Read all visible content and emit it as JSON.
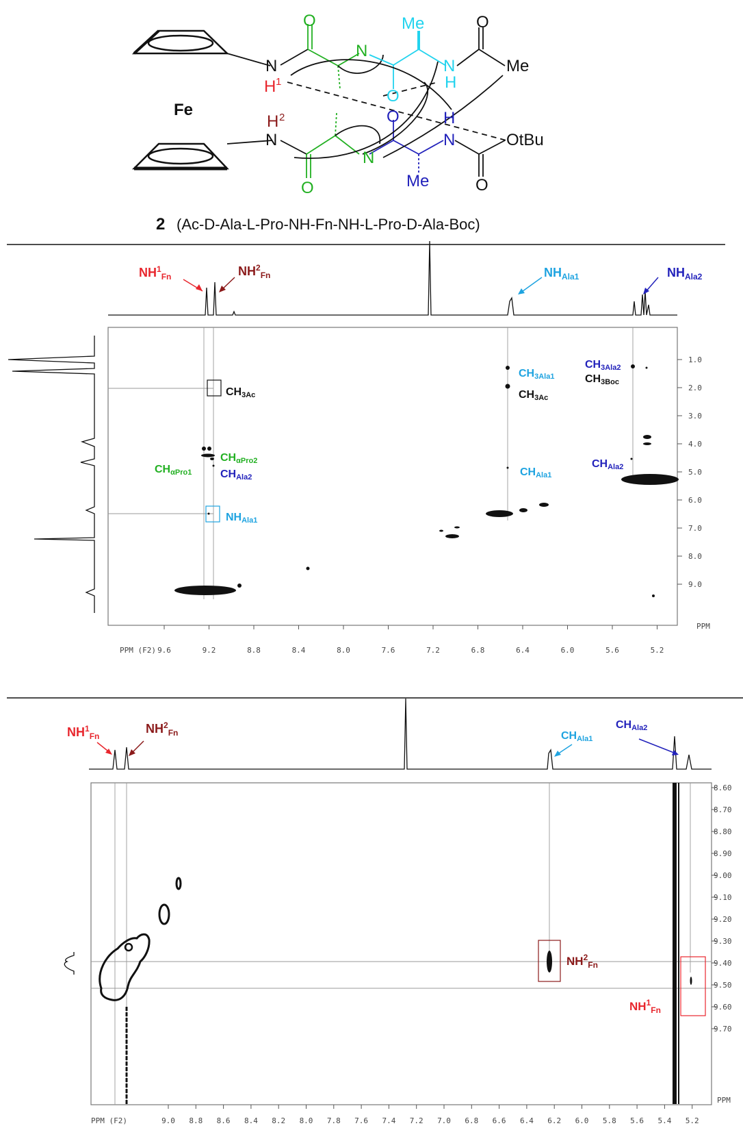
{
  "molecule": {
    "metal": "Fe",
    "atoms": {
      "N": "N",
      "H": "H",
      "O": "O",
      "Me": "Me",
      "OtBu": "OtBu",
      "H1": "1",
      "H2": "2"
    },
    "caption_num": "2",
    "caption": "(Ac-D-Ala-L-Pro-NH-Fn-NH-L-Pro-D-Ala-Boc)"
  },
  "panel1": {
    "annotations": {
      "nh1_fn": {
        "main": "NH",
        "sup": "1",
        "sub": "Fn"
      },
      "nh2_fn": {
        "main": "NH",
        "sup": "2",
        "sub": "Fn"
      },
      "nh_ala1": {
        "main": "NH",
        "sub": "Ala1"
      },
      "nh_ala2": {
        "main": "NH",
        "sub": "Ala2"
      },
      "ch3_ac_left": {
        "main": "CH",
        "sub": "3Ac"
      },
      "ch3_ala1": {
        "main": "CH",
        "sub": "3Ala1"
      },
      "ch3_ac_right": {
        "main": "CH",
        "sub": "3Ac"
      },
      "ch3_ala2": {
        "main": "CH",
        "sub": "3Ala2"
      },
      "ch3_boc": {
        "main": "CH",
        "sub": "3Boc"
      },
      "ch_apro1": {
        "main": "CH",
        "sub": "αPro1"
      },
      "ch_apro2": {
        "main": "CH",
        "sub": "αPro2"
      },
      "ch_ala2_left": {
        "main": "CH",
        "sub": "Ala2"
      },
      "ch_ala1": {
        "main": "CH",
        "sub": "Ala1"
      },
      "ch_ala2_right": {
        "main": "CH",
        "sub": "Ala2"
      },
      "nh_ala1_box": {
        "main": "NH",
        "sub": "Ala1"
      }
    },
    "x_axis_label": "PPM (F2)",
    "y_axis_label": "PPM",
    "x_ticks": [
      "9.6",
      "9.2",
      "8.8",
      "8.4",
      "8.0",
      "7.6",
      "7.2",
      "6.8",
      "6.4",
      "6.0",
      "5.6",
      "5.2"
    ],
    "y_ticks": [
      "1.0",
      "2.0",
      "3.0",
      "4.0",
      "5.0",
      "6.0",
      "7.0",
      "8.0",
      "9.0"
    ]
  },
  "panel2": {
    "annotations": {
      "nh1_fn": {
        "main": "NH",
        "sup": "1",
        "sub": "Fn"
      },
      "nh2_fn": {
        "main": "NH",
        "sup": "2",
        "sub": "Fn"
      },
      "ch_ala1": {
        "main": "CH",
        "sub": "Ala1"
      },
      "ch_ala2": {
        "main": "CH",
        "sub": "Ala2"
      },
      "nh2_fn_box": {
        "main": "NH",
        "sup": "2",
        "sub": "Fn"
      },
      "nh1_fn_box": {
        "main": "NH",
        "sup": "1",
        "sub": "Fn"
      }
    },
    "x_axis_label": "PPM (F2)",
    "y_axis_label": "PPM",
    "x_ticks": [
      "9.0",
      "8.8",
      "8.6",
      "8.4",
      "8.2",
      "8.0",
      "7.8",
      "7.6",
      "7.4",
      "7.2",
      "7.0",
      "6.8",
      "6.6",
      "6.4",
      "6.2",
      "6.0",
      "5.8",
      "5.6",
      "5.4",
      "5.2"
    ],
    "y_ticks": [
      "8.60",
      "8.70",
      "8.80",
      "8.90",
      "9.00",
      "9.10",
      "9.20",
      "9.30",
      "9.40",
      "9.50",
      "9.60",
      "9.70"
    ]
  },
  "colors": {
    "red": "#e8262d",
    "darkred": "#8b1a1a",
    "lightblue": "#1ea3e0",
    "blue": "#2222bb",
    "green": "#22b022",
    "cyan": "#22d3ee",
    "black": "#111111"
  }
}
